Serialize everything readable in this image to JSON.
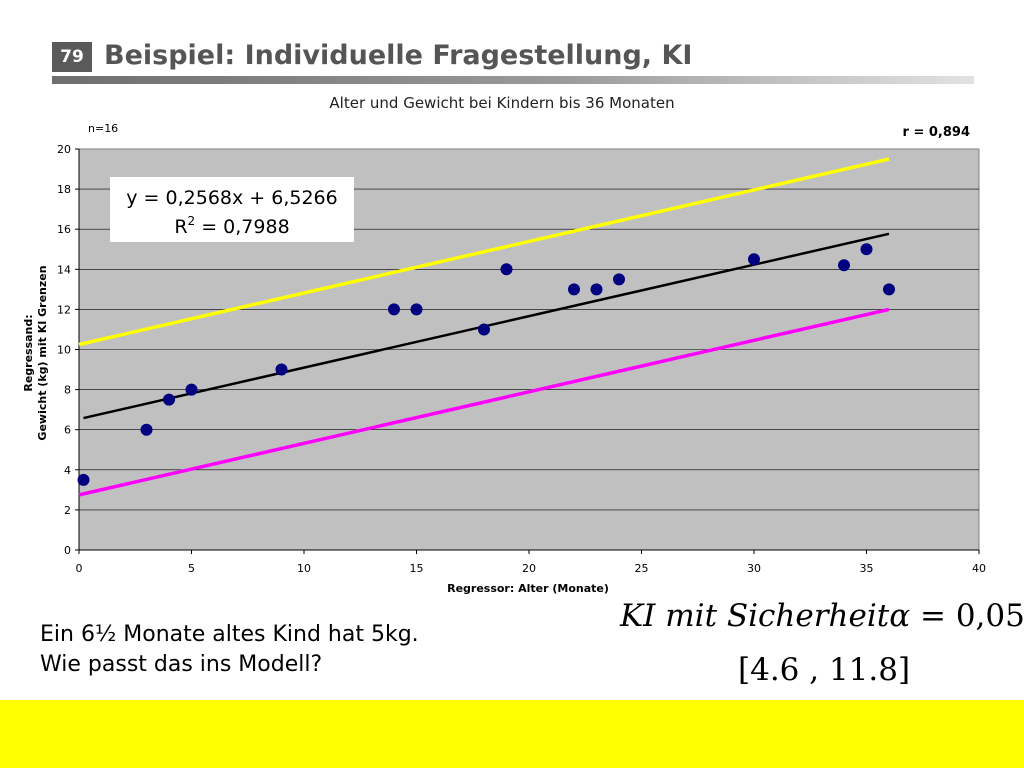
{
  "slide": {
    "number": "79",
    "title": "Beispiel: Individuelle Fragestellung, KI"
  },
  "chart_data": {
    "type": "scatter",
    "title": "Alter und Gewicht bei Kindern bis 36 Monaten",
    "xlabel": "Regressor: Alter (Monate)",
    "ylabel_lines": [
      "Regressand:",
      "Gewicht (kg) mit KI Grenzen"
    ],
    "xlim": [
      0,
      40
    ],
    "ylim": [
      0,
      20
    ],
    "xticks": [
      0,
      5,
      10,
      15,
      20,
      25,
      30,
      35,
      40
    ],
    "yticks": [
      0,
      2,
      4,
      6,
      8,
      10,
      12,
      14,
      16,
      18,
      20
    ],
    "grid": "horizontal",
    "n_label": "n=16",
    "r_label": "r = 0,894",
    "equation_line1": "y = 0,2568x + 6,5266",
    "equation_r": "R",
    "equation_sup": "2",
    "equation_rest": " = 0,7988",
    "points": [
      {
        "x": 0.2,
        "y": 3.5
      },
      {
        "x": 3,
        "y": 6
      },
      {
        "x": 4,
        "y": 7.5
      },
      {
        "x": 5,
        "y": 8
      },
      {
        "x": 9,
        "y": 9
      },
      {
        "x": 14,
        "y": 12
      },
      {
        "x": 15,
        "y": 12
      },
      {
        "x": 18,
        "y": 11
      },
      {
        "x": 19,
        "y": 14
      },
      {
        "x": 22,
        "y": 13
      },
      {
        "x": 23,
        "y": 13
      },
      {
        "x": 24,
        "y": 13.5
      },
      {
        "x": 30,
        "y": 14.5
      },
      {
        "x": 34,
        "y": 14.2
      },
      {
        "x": 35,
        "y": 15
      },
      {
        "x": 36,
        "y": 13
      }
    ],
    "lines": [
      {
        "role": "regression",
        "x": [
          0.2,
          36
        ],
        "y": [
          6.58,
          15.77
        ]
      },
      {
        "role": "upper-ci",
        "x": [
          0,
          36
        ],
        "y": [
          10.25,
          19.5
        ]
      },
      {
        "role": "lower-ci",
        "x": [
          0,
          36
        ],
        "y": [
          2.75,
          12.0
        ]
      }
    ],
    "colors": {
      "plot_bg": "#c0c0c0",
      "grid": "#000000",
      "points": "#000080",
      "regression": "#000000",
      "upper-ci": "#ffff00",
      "lower-ci": "#ff00ff"
    }
  },
  "question": {
    "line1": "Ein 6½ Monate altes Kind hat 5kg.",
    "line2": "Wie passt das ins Modell?"
  },
  "ki": {
    "label_text": "KI mit Sicherheit",
    "alpha": "α",
    "equals": " = 0,05",
    "interval": "[4.6 , 11.8]"
  },
  "colors": {
    "bottom_bar": "#ffff00",
    "slide_number_bg": "#5a5a5a",
    "title_text": "#555555"
  }
}
